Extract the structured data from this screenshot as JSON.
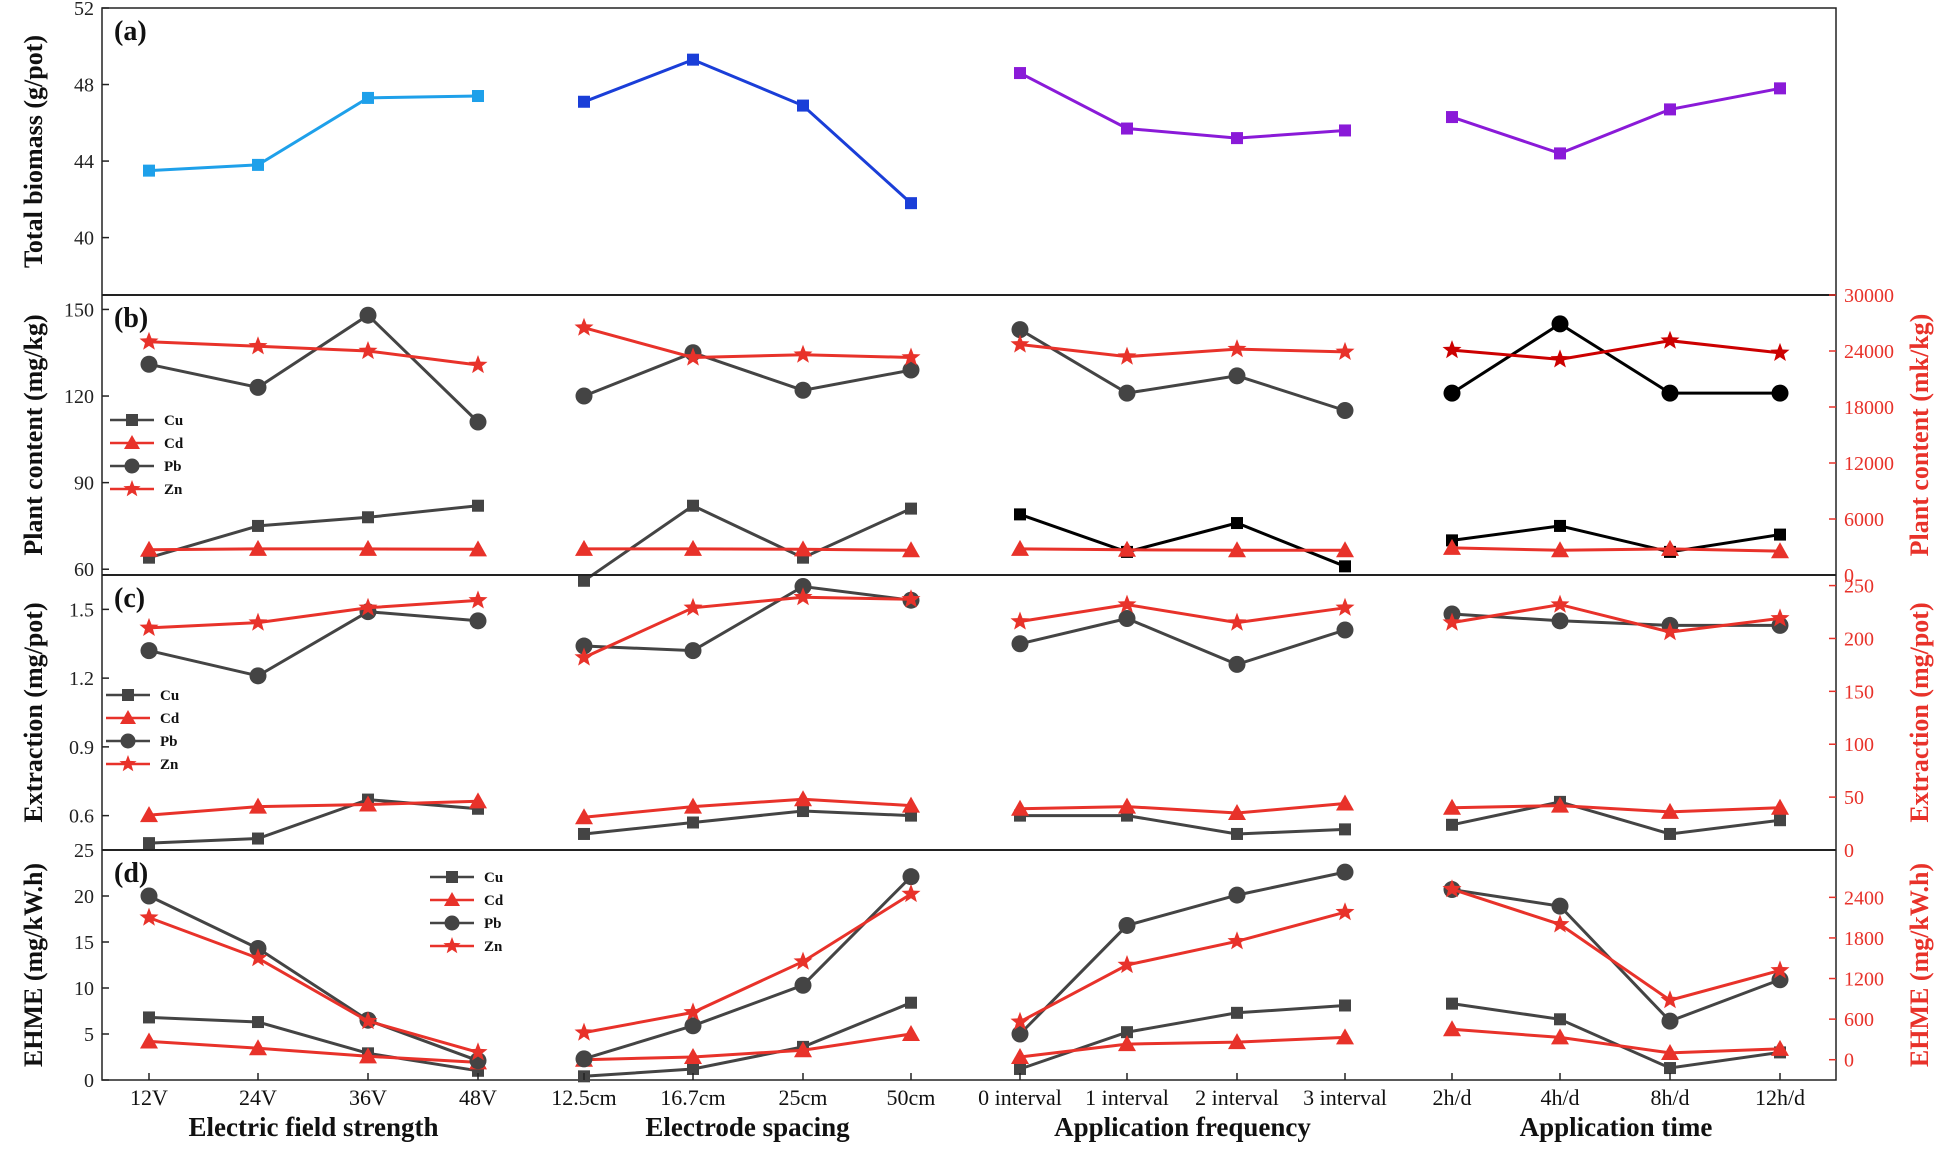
{
  "chart_data": {
    "type": "line",
    "x_groups": [
      {
        "name": "Electric field strength",
        "ticks": [
          "12V",
          "24V",
          "36V",
          "48V"
        ]
      },
      {
        "name": "Electrode spacing",
        "ticks": [
          "12.5cm",
          "16.7cm",
          "25cm",
          "50cm"
        ]
      },
      {
        "name": "Application frequency",
        "ticks": [
          "0 interval",
          "1 interval",
          "2 interval",
          "3 interval"
        ]
      },
      {
        "name": "Application time",
        "ticks": [
          "2h/d",
          "4h/d",
          "8h/d",
          "12h/d"
        ]
      }
    ],
    "panels": [
      {
        "label": "(a)",
        "ylabel": "Total biomass (g/pot)",
        "ylim": [
          37,
          52
        ],
        "yticks": [
          "40",
          "44",
          "48",
          "52"
        ],
        "legend": [],
        "series": [
          {
            "name": "Total biomass",
            "axis": "left",
            "colors": [
              "#1ea0ea",
              "#1a3ed8",
              "#8a1ad8",
              "#8a1ad8"
            ],
            "marker": "square",
            "groups": [
              [
                43.5,
                43.8,
                47.3,
                47.4
              ],
              [
                47.1,
                49.3,
                46.9,
                41.8
              ],
              [
                48.6,
                45.7,
                45.2,
                45.6
              ],
              [
                46.3,
                44.4,
                46.7,
                47.8
              ]
            ]
          }
        ]
      },
      {
        "label": "(b)",
        "ylabel": "Plant content (mg/kg)",
        "ylabel_right": "Plant content (mk/kg)",
        "ylim": [
          58,
          155
        ],
        "yticks": [
          "60",
          "90",
          "120",
          "150"
        ],
        "ylim_right": [
          0,
          30000
        ],
        "yticks_right": [
          "0",
          "6000",
          "12000",
          "18000",
          "24000",
          "30000"
        ],
        "legend": [
          "Cu",
          "Cd",
          "Pb",
          "Zn"
        ],
        "series": [
          {
            "name": "Cu",
            "axis": "left",
            "colors": [
              "#444444",
              "#444444",
              "#000000",
              "#000000"
            ],
            "marker": "square",
            "groups": [
              [
                64,
                75,
                78,
                82
              ],
              [
                56,
                82,
                64,
                81
              ],
              [
                79,
                66,
                76,
                61
              ],
              [
                70,
                75,
                66,
                72
              ]
            ]
          },
          {
            "name": "Cd",
            "axis": "right",
            "colors": [
              "#e8322a",
              "#e8322a",
              "#e8322a",
              "#e8322a"
            ],
            "marker": "triangle",
            "groups": [
              [
                2700,
                2800,
                2800,
                2750
              ],
              [
                2800,
                2800,
                2750,
                2650
              ],
              [
                2800,
                2700,
                2650,
                2650
              ],
              [
                2900,
                2650,
                2800,
                2550
              ]
            ]
          },
          {
            "name": "Pb",
            "axis": "left",
            "colors": [
              "#444444",
              "#444444",
              "#444444",
              "#000000"
            ],
            "marker": "circle",
            "groups": [
              [
                131,
                123,
                148,
                111
              ],
              [
                120,
                135,
                122,
                129
              ],
              [
                143,
                121,
                127,
                115
              ],
              [
                121,
                145,
                121,
                121
              ]
            ]
          },
          {
            "name": "Zn",
            "axis": "right",
            "colors": [
              "#e8322a",
              "#e8322a",
              "#e8322a",
              "#cc0000"
            ],
            "marker": "star",
            "groups": [
              [
                25000,
                24500,
                24000,
                22500
              ],
              [
                26500,
                23300,
                23600,
                23300
              ],
              [
                24700,
                23400,
                24200,
                23900
              ],
              [
                24100,
                23100,
                25100,
                23800
              ]
            ]
          }
        ]
      },
      {
        "label": "(c)",
        "ylabel": "Extraction (mg/pot)",
        "ylabel_right": "Extraction (mg/pot)",
        "ylim": [
          0.45,
          1.65
        ],
        "yticks": [
          "0.6",
          "0.9",
          "1.2",
          "1.5"
        ],
        "ylim_right": [
          0,
          260
        ],
        "yticks_right": [
          "0",
          "50",
          "100",
          "150",
          "200",
          "250"
        ],
        "legend": [
          "Cu",
          "Cd",
          "Pb",
          "Zn"
        ],
        "series": [
          {
            "name": "Cu",
            "axis": "left",
            "colors": [
              "#444444",
              "#444444",
              "#444444",
              "#444444"
            ],
            "marker": "square",
            "groups": [
              [
                0.48,
                0.5,
                0.67,
                0.63
              ],
              [
                0.52,
                0.57,
                0.62,
                0.6
              ],
              [
                0.6,
                0.6,
                0.52,
                0.54
              ],
              [
                0.56,
                0.66,
                0.52,
                0.58
              ]
            ]
          },
          {
            "name": "Cd",
            "axis": "right",
            "colors": [
              "#e8322a",
              "#e8322a",
              "#e8322a",
              "#e8322a"
            ],
            "marker": "triangle",
            "groups": [
              [
                33,
                41,
                43,
                46
              ],
              [
                31,
                41,
                48,
                42
              ],
              [
                39,
                41,
                35,
                44
              ],
              [
                40,
                42,
                36,
                40
              ]
            ]
          },
          {
            "name": "Pb",
            "axis": "left",
            "colors": [
              "#444444",
              "#444444",
              "#444444",
              "#444444"
            ],
            "marker": "circle",
            "groups": [
              [
                1.32,
                1.21,
                1.49,
                1.45
              ],
              [
                1.34,
                1.32,
                1.6,
                1.54
              ],
              [
                1.35,
                1.46,
                1.26,
                1.41
              ],
              [
                1.48,
                1.45,
                1.43,
                1.43
              ]
            ]
          },
          {
            "name": "Zn",
            "axis": "right",
            "colors": [
              "#e8322a",
              "#e8322a",
              "#e8322a",
              "#e8322a"
            ],
            "marker": "star",
            "groups": [
              [
                210,
                215,
                229,
                236
              ],
              [
                182,
                229,
                239,
                237
              ],
              [
                216,
                232,
                215,
                229
              ],
              [
                215,
                232,
                206,
                219
              ]
            ]
          }
        ]
      },
      {
        "label": "(d)",
        "ylabel": "EHME (mg/kW.h)",
        "ylabel_right": "EHME (mg/kW.h)",
        "ylim": [
          0,
          25
        ],
        "yticks": [
          "0",
          "5",
          "10",
          "15",
          "20",
          "25"
        ],
        "ylim_right": [
          -300,
          3100
        ],
        "yticks_right": [
          "0",
          "600",
          "1200",
          "1800",
          "2400"
        ],
        "legend": [
          "Cu",
          "Cd",
          "Pb",
          "Zn"
        ],
        "series": [
          {
            "name": "Cu",
            "axis": "left",
            "colors": [
              "#444444",
              "#444444",
              "#444444",
              "#444444"
            ],
            "marker": "square",
            "groups": [
              [
                6.8,
                6.3,
                2.9,
                1.0
              ],
              [
                0.4,
                1.2,
                3.6,
                8.4
              ],
              [
                1.2,
                5.2,
                7.3,
                8.1
              ],
              [
                8.3,
                6.6,
                1.3,
                3.0
              ]
            ]
          },
          {
            "name": "Cd",
            "axis": "right",
            "colors": [
              "#e8322a",
              "#e8322a",
              "#e8322a",
              "#e8322a"
            ],
            "marker": "triangle",
            "groups": [
              [
                270,
                170,
                50,
                -40
              ],
              [
                0,
                40,
                140,
                380
              ],
              [
                40,
                230,
                260,
                330
              ],
              [
                450,
                330,
                100,
                160
              ]
            ]
          },
          {
            "name": "Pb",
            "axis": "left",
            "colors": [
              "#444444",
              "#444444",
              "#444444",
              "#444444"
            ],
            "marker": "circle",
            "groups": [
              [
                20.0,
                14.3,
                6.5,
                2.1
              ],
              [
                2.3,
                5.9,
                10.3,
                22.1
              ],
              [
                5.0,
                16.8,
                20.1,
                22.6
              ],
              [
                20.7,
                18.9,
                6.4,
                10.9
              ]
            ]
          },
          {
            "name": "Zn",
            "axis": "right",
            "colors": [
              "#e8322a",
              "#e8322a",
              "#e8322a",
              "#e8322a"
            ],
            "marker": "star",
            "groups": [
              [
                2100,
                1500,
                570,
                110
              ],
              [
                400,
                700,
                1450,
                2450
              ],
              [
                560,
                1400,
                1750,
                2180
              ],
              [
                2520,
                2000,
                880,
                1320
              ]
            ]
          }
        ]
      }
    ]
  }
}
